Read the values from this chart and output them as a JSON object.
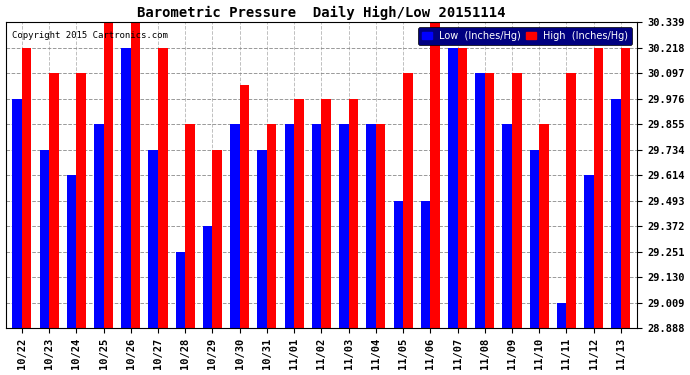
{
  "title": "Barometric Pressure  Daily High/Low 20151114",
  "copyright": "Copyright 2015 Cartronics.com",
  "legend_low": "Low  (Inches/Hg)",
  "legend_high": "High  (Inches/Hg)",
  "color_low": "#0000ff",
  "color_high": "#ff0000",
  "background_color": "#ffffff",
  "ylim_min": 28.888,
  "ylim_max": 30.339,
  "yticks": [
    28.888,
    29.009,
    29.13,
    29.251,
    29.372,
    29.493,
    29.614,
    29.734,
    29.855,
    29.976,
    30.097,
    30.218,
    30.339
  ],
  "dates": [
    "10/22",
    "10/23",
    "10/24",
    "10/25",
    "10/26",
    "10/27",
    "10/28",
    "10/29",
    "10/30",
    "10/31",
    "11/01",
    "11/02",
    "11/03",
    "11/04",
    "11/05",
    "11/06",
    "11/07",
    "11/08",
    "11/09",
    "11/10",
    "11/11",
    "11/12",
    "11/13"
  ],
  "lows": [
    29.976,
    29.734,
    29.614,
    29.855,
    30.218,
    29.734,
    29.251,
    29.372,
    29.855,
    29.734,
    29.855,
    29.855,
    29.855,
    29.855,
    29.493,
    29.493,
    30.218,
    30.097,
    29.855,
    29.734,
    29.009,
    29.614,
    29.976
  ],
  "highs": [
    30.218,
    30.097,
    30.097,
    30.339,
    30.339,
    30.218,
    29.855,
    29.734,
    30.04,
    29.855,
    29.976,
    29.976,
    29.976,
    29.855,
    30.097,
    30.339,
    30.218,
    30.097,
    30.097,
    29.855,
    30.097,
    30.218,
    30.218
  ],
  "bar_width": 0.35
}
